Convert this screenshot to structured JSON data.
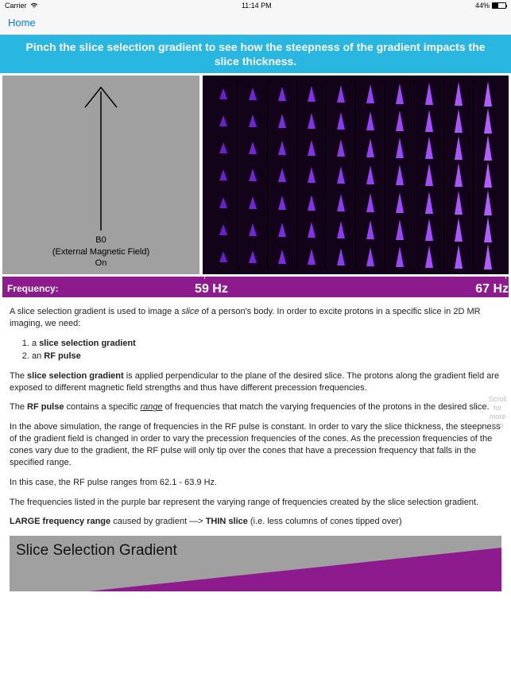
{
  "status": {
    "carrier": "Carrier",
    "time": "11:14 PM",
    "battery_pct": "44%"
  },
  "nav": {
    "home": "Home"
  },
  "banner": "Pinch the slice selection gradient to see  how the steepness of the gradient impacts the slice thickness.",
  "b0": {
    "line1": "B0",
    "line2": "(External Magnetic Field)",
    "line3": "On",
    "arrow_color": "#000000"
  },
  "cones": {
    "columns": 10,
    "rows": 7,
    "bg": "#120318",
    "colors": [
      "#6a1fd0",
      "#7225d8",
      "#7a2ce0",
      "#8233e8",
      "#8a3aef",
      "#9241f5",
      "#9a48fa",
      "#a24fff",
      "#aa56ff",
      "#b25dff"
    ],
    "heights": [
      14,
      16,
      18,
      20,
      22,
      24,
      26,
      28,
      30,
      32
    ]
  },
  "freq": {
    "label": "Frequency:",
    "low": "59 Hz",
    "high": "67 Hz",
    "bar_color": "#8e1b8e",
    "low_pos_pct": 38,
    "high_pos_pct": 100,
    "tick_left_pct": 39.8,
    "tick_right_pct": 99.4
  },
  "text": {
    "p1a": "A slice selection gradient is used to image a ",
    "p1_slice": "slice",
    "p1b": " of a person's body. In order to excite protons in a specific slice in 2D MR imaging, we need:",
    "li1a": "a ",
    "li1b": "slice selection gradient",
    "li2a": "an ",
    "li2b": "RF pulse",
    "p2a": "The ",
    "p2b": "slice selection gradient",
    "p2c": " is applied perpendicular to the plane of the desired slice. The protons along the gradient field are exposed to different magnetic field strengths and thus have different precession frequencies.",
    "p3a": "The ",
    "p3b": "RF pulse",
    "p3c": " contains a specific ",
    "p3_range": "range",
    "p3d": " of frequencies that match the varying frequencies of the protons in the desired slice.",
    "p4": "In the above simulation, the range of frequencies in the RF pulse is constant. In order to vary the slice thickness, the steepness of the gradient field is changed in order to vary the precession frequencies of the cones. As the precession frequencies of the cones vary due to the gradient, the RF pulse will only tip over the cones that have a precession frequency that falls in the specified range.",
    "p5": "In this case, the RF pulse ranges from 62.1 - 63.9 Hz.",
    "p6": "The frequencies listed in the purple bar represent the varying range of frequencies created by the slice selection gradient.",
    "p7a": "LARGE frequency range",
    "p7b": " caused by gradient —> ",
    "p7c": "THIN slice",
    "p7d": " (i.e. less columns of cones tipped over)",
    "scroll": "Scroll\nfor\nmore\ninfo"
  },
  "gradient": {
    "title": "Slice Selection Gradient",
    "bg": "#a0a0a0",
    "triangle_color": "#8e1b8e",
    "triangle_width": 520,
    "triangle_height": 55
  }
}
